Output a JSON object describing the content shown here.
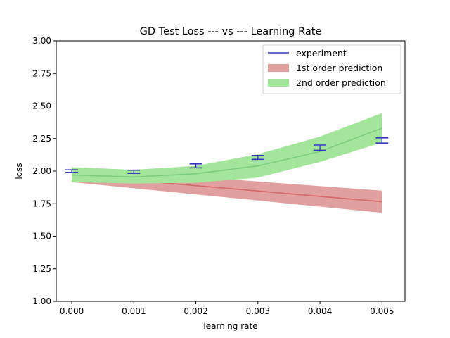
{
  "chart_data": {
    "type": "line",
    "title": "GD Test Loss --- vs --- Learning Rate",
    "xlabel": "learning rate",
    "ylabel": "loss",
    "xlim": [
      -0.00025,
      0.00537
    ],
    "ylim": [
      1.0,
      3.0
    ],
    "x_ticks": [
      "0.000",
      "0.001",
      "0.002",
      "0.003",
      "0.004",
      "0.005"
    ],
    "y_ticks": [
      "1.00",
      "1.25",
      "1.50",
      "1.75",
      "2.00",
      "2.25",
      "2.50",
      "2.75",
      "3.00"
    ],
    "legend_position": "top-right",
    "grid": false,
    "series": [
      {
        "name": "experiment",
        "kind": "errorbar",
        "color": "#3a3abf",
        "x": [
          0.0,
          0.001,
          0.002,
          0.003,
          0.004,
          0.005
        ],
        "y": [
          2.0,
          1.995,
          2.04,
          2.105,
          2.18,
          2.235
        ],
        "err": [
          0.01,
          0.012,
          0.015,
          0.015,
          0.02,
          0.02
        ]
      },
      {
        "name": "1st order prediction",
        "kind": "band",
        "color": "#d46a6a",
        "fill": "#e0a0a0",
        "x": [
          0.0,
          0.005
        ],
        "center": [
          1.97,
          1.765
        ],
        "lower": [
          1.915,
          1.68
        ],
        "upper": [
          2.025,
          1.85
        ]
      },
      {
        "name": "2nd order prediction",
        "kind": "band",
        "color": "#7ed07e",
        "fill": "#a3e59a",
        "x": [
          0.0,
          0.001,
          0.002,
          0.003,
          0.004,
          0.005
        ],
        "center": [
          1.97,
          1.955,
          1.98,
          2.04,
          2.15,
          2.33
        ],
        "lower": [
          1.915,
          1.905,
          1.91,
          1.95,
          2.07,
          2.22
        ],
        "upper": [
          2.03,
          2.01,
          2.04,
          2.13,
          2.265,
          2.445
        ]
      }
    ]
  }
}
